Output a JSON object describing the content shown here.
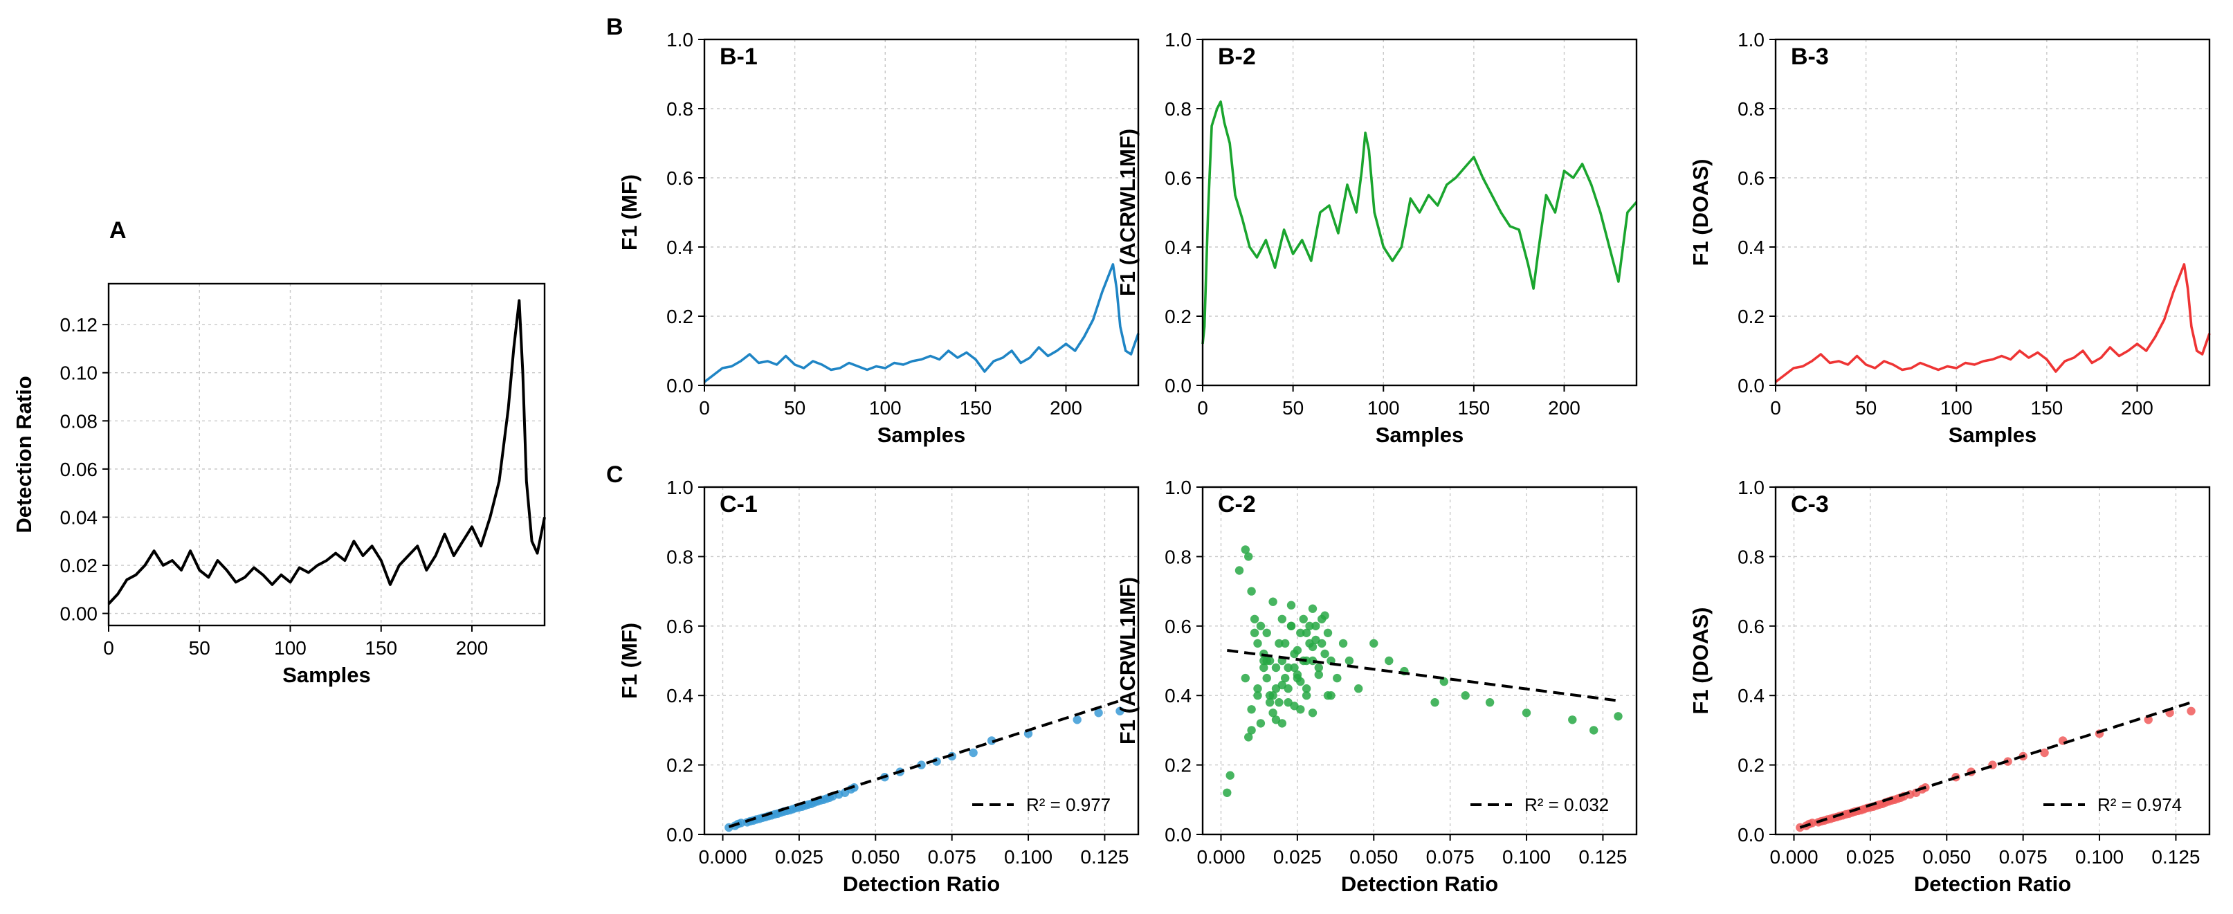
{
  "figure": {
    "panel_letters": {
      "A": "A",
      "B": "B",
      "C": "C"
    }
  },
  "chart_data": [
    {
      "id": "A",
      "type": "line",
      "title": "",
      "xlabel": "Samples",
      "ylabel": "Detection Ratio",
      "xlim": [
        0,
        240
      ],
      "ylim": [
        -0.005,
        0.137
      ],
      "xticks": [
        0,
        50,
        100,
        150,
        200
      ],
      "xtick_labels": [
        "0",
        "50",
        "100",
        "150",
        "200"
      ],
      "yticks": [
        0.0,
        0.02,
        0.04,
        0.06,
        0.08,
        0.1,
        0.12
      ],
      "ytick_labels": [
        "0.00",
        "0.02",
        "0.04",
        "0.06",
        "0.08",
        "0.10",
        "0.12"
      ],
      "grid": true,
      "color": "#000000",
      "series": [
        {
          "name": "Detection Ratio",
          "x": [
            0,
            5,
            10,
            15,
            20,
            25,
            30,
            35,
            40,
            45,
            50,
            55,
            60,
            65,
            70,
            75,
            80,
            85,
            90,
            95,
            100,
            105,
            110,
            115,
            120,
            125,
            130,
            135,
            140,
            145,
            150,
            155,
            160,
            165,
            170,
            175,
            180,
            185,
            190,
            195,
            200,
            205,
            210,
            215,
            220,
            223,
            226,
            228,
            230,
            233,
            236,
            240
          ],
          "y": [
            0.004,
            0.008,
            0.014,
            0.016,
            0.02,
            0.026,
            0.02,
            0.022,
            0.018,
            0.026,
            0.018,
            0.015,
            0.022,
            0.018,
            0.013,
            0.015,
            0.019,
            0.016,
            0.012,
            0.016,
            0.013,
            0.019,
            0.017,
            0.02,
            0.022,
            0.025,
            0.022,
            0.03,
            0.024,
            0.028,
            0.022,
            0.012,
            0.02,
            0.024,
            0.028,
            0.018,
            0.024,
            0.033,
            0.024,
            0.03,
            0.036,
            0.028,
            0.04,
            0.055,
            0.085,
            0.11,
            0.13,
            0.1,
            0.055,
            0.03,
            0.025,
            0.04
          ]
        }
      ]
    },
    {
      "id": "B-1",
      "type": "line",
      "title": "B-1",
      "xlabel": "Samples",
      "ylabel": "F1 (MF)",
      "xlim": [
        0,
        240
      ],
      "ylim": [
        0,
        1.0
      ],
      "xticks": [
        0,
        50,
        100,
        150,
        200
      ],
      "xtick_labels": [
        "0",
        "50",
        "100",
        "150",
        "200"
      ],
      "yticks": [
        0.0,
        0.2,
        0.4,
        0.6,
        0.8,
        1.0
      ],
      "ytick_labels": [
        "0.0",
        "0.2",
        "0.4",
        "0.6",
        "0.8",
        "1.0"
      ],
      "grid": true,
      "color": "#1f85c5",
      "series": [
        {
          "name": "MF",
          "x": [
            0,
            5,
            10,
            15,
            20,
            25,
            30,
            35,
            40,
            45,
            50,
            55,
            60,
            65,
            70,
            75,
            80,
            85,
            90,
            95,
            100,
            105,
            110,
            115,
            120,
            125,
            130,
            135,
            140,
            145,
            150,
            155,
            160,
            165,
            170,
            175,
            180,
            185,
            190,
            195,
            200,
            205,
            210,
            215,
            220,
            223,
            226,
            228,
            230,
            233,
            236,
            240
          ],
          "y": [
            0.01,
            0.03,
            0.05,
            0.055,
            0.07,
            0.09,
            0.065,
            0.07,
            0.06,
            0.085,
            0.06,
            0.05,
            0.07,
            0.06,
            0.045,
            0.05,
            0.065,
            0.055,
            0.045,
            0.055,
            0.05,
            0.065,
            0.06,
            0.07,
            0.075,
            0.085,
            0.075,
            0.1,
            0.08,
            0.095,
            0.075,
            0.04,
            0.07,
            0.08,
            0.1,
            0.065,
            0.08,
            0.11,
            0.085,
            0.1,
            0.12,
            0.1,
            0.14,
            0.19,
            0.27,
            0.31,
            0.35,
            0.28,
            0.17,
            0.1,
            0.09,
            0.15
          ]
        }
      ]
    },
    {
      "id": "B-2",
      "type": "line",
      "title": "B-2",
      "xlabel": "Samples",
      "ylabel": "F1 (ACRWL1MF)",
      "xlim": [
        0,
        240
      ],
      "ylim": [
        0,
        1.0
      ],
      "xticks": [
        0,
        50,
        100,
        150,
        200
      ],
      "xtick_labels": [
        "0",
        "50",
        "100",
        "150",
        "200"
      ],
      "yticks": [
        0.0,
        0.2,
        0.4,
        0.6,
        0.8,
        1.0
      ],
      "ytick_labels": [
        "0.0",
        "0.2",
        "0.4",
        "0.6",
        "0.8",
        "1.0"
      ],
      "grid": true,
      "color": "#1aa52e",
      "series": [
        {
          "name": "ACRWL1MF",
          "x": [
            0,
            1,
            3,
            5,
            8,
            10,
            12,
            15,
            18,
            22,
            26,
            30,
            35,
            40,
            45,
            50,
            55,
            60,
            65,
            70,
            75,
            80,
            85,
            88,
            90,
            92,
            95,
            100,
            105,
            110,
            115,
            120,
            125,
            130,
            135,
            140,
            145,
            150,
            155,
            160,
            165,
            170,
            175,
            180,
            183,
            186,
            190,
            195,
            200,
            205,
            210,
            215,
            220,
            225,
            230,
            235,
            240
          ],
          "y": [
            0.12,
            0.17,
            0.5,
            0.75,
            0.8,
            0.82,
            0.76,
            0.7,
            0.55,
            0.48,
            0.4,
            0.37,
            0.42,
            0.34,
            0.45,
            0.38,
            0.42,
            0.36,
            0.5,
            0.52,
            0.44,
            0.58,
            0.5,
            0.62,
            0.73,
            0.68,
            0.5,
            0.4,
            0.36,
            0.4,
            0.54,
            0.5,
            0.55,
            0.52,
            0.58,
            0.6,
            0.63,
            0.66,
            0.6,
            0.55,
            0.5,
            0.46,
            0.45,
            0.35,
            0.28,
            0.4,
            0.55,
            0.5,
            0.62,
            0.6,
            0.64,
            0.58,
            0.5,
            0.4,
            0.3,
            0.5,
            0.53
          ]
        }
      ]
    },
    {
      "id": "B-3",
      "type": "line",
      "title": "B-3",
      "xlabel": "Samples",
      "ylabel": "F1 (DOAS)",
      "xlim": [
        0,
        240
      ],
      "ylim": [
        0,
        1.0
      ],
      "xticks": [
        0,
        50,
        100,
        150,
        200
      ],
      "xtick_labels": [
        "0",
        "50",
        "100",
        "150",
        "200"
      ],
      "yticks": [
        0.0,
        0.2,
        0.4,
        0.6,
        0.8,
        1.0
      ],
      "ytick_labels": [
        "0.0",
        "0.2",
        "0.4",
        "0.6",
        "0.8",
        "1.0"
      ],
      "grid": true,
      "color": "#ee3434",
      "series": [
        {
          "name": "DOAS",
          "x": [
            0,
            5,
            10,
            15,
            20,
            25,
            30,
            35,
            40,
            45,
            50,
            55,
            60,
            65,
            70,
            75,
            80,
            85,
            90,
            95,
            100,
            105,
            110,
            115,
            120,
            125,
            130,
            135,
            140,
            145,
            150,
            155,
            160,
            165,
            170,
            175,
            180,
            185,
            190,
            195,
            200,
            205,
            210,
            215,
            220,
            223,
            226,
            228,
            230,
            233,
            236,
            240
          ],
          "y": [
            0.01,
            0.03,
            0.05,
            0.055,
            0.07,
            0.09,
            0.065,
            0.07,
            0.06,
            0.085,
            0.06,
            0.05,
            0.07,
            0.06,
            0.045,
            0.05,
            0.065,
            0.055,
            0.045,
            0.055,
            0.05,
            0.065,
            0.06,
            0.07,
            0.075,
            0.085,
            0.075,
            0.1,
            0.08,
            0.095,
            0.075,
            0.04,
            0.07,
            0.08,
            0.1,
            0.065,
            0.08,
            0.11,
            0.085,
            0.1,
            0.12,
            0.1,
            0.14,
            0.19,
            0.27,
            0.31,
            0.35,
            0.28,
            0.17,
            0.1,
            0.09,
            0.15
          ]
        }
      ]
    },
    {
      "id": "C-1",
      "type": "scatter",
      "title": "C-1",
      "xlabel": "Detection Ratio",
      "ylabel": "F1 (MF)",
      "xlim": [
        -0.006,
        0.136
      ],
      "ylim": [
        0,
        1.0
      ],
      "xticks": [
        0.0,
        0.025,
        0.05,
        0.075,
        0.1,
        0.125
      ],
      "xtick_labels": [
        "0.000",
        "0.025",
        "0.050",
        "0.075",
        "0.100",
        "0.125"
      ],
      "yticks": [
        0.0,
        0.2,
        0.4,
        0.6,
        0.8,
        1.0
      ],
      "ytick_labels": [
        "0.0",
        "0.2",
        "0.4",
        "0.6",
        "0.8",
        "1.0"
      ],
      "grid": true,
      "color": "#3a9ad6",
      "legend_label": "R² = 0.977",
      "legend_position": "bottom-right",
      "fit_line": {
        "x": [
          0.002,
          0.13
        ],
        "y": [
          0.022,
          0.385
        ]
      },
      "x": [
        0.002,
        0.004,
        0.005,
        0.006,
        0.008,
        0.009,
        0.01,
        0.011,
        0.012,
        0.013,
        0.014,
        0.015,
        0.016,
        0.017,
        0.018,
        0.019,
        0.02,
        0.021,
        0.022,
        0.023,
        0.024,
        0.025,
        0.026,
        0.027,
        0.028,
        0.029,
        0.03,
        0.031,
        0.032,
        0.033,
        0.034,
        0.035,
        0.036,
        0.038,
        0.04,
        0.042,
        0.043,
        0.053,
        0.058,
        0.065,
        0.07,
        0.075,
        0.082,
        0.088,
        0.1,
        0.116,
        0.123,
        0.13
      ],
      "y": [
        0.02,
        0.025,
        0.03,
        0.033,
        0.035,
        0.038,
        0.04,
        0.043,
        0.045,
        0.048,
        0.05,
        0.053,
        0.055,
        0.058,
        0.06,
        0.063,
        0.066,
        0.068,
        0.07,
        0.073,
        0.076,
        0.078,
        0.08,
        0.083,
        0.086,
        0.088,
        0.092,
        0.095,
        0.098,
        0.1,
        0.103,
        0.106,
        0.11,
        0.115,
        0.12,
        0.13,
        0.135,
        0.165,
        0.18,
        0.2,
        0.21,
        0.225,
        0.235,
        0.27,
        0.29,
        0.33,
        0.35,
        0.355
      ]
    },
    {
      "id": "C-2",
      "type": "scatter",
      "title": "C-2",
      "xlabel": "Detection Ratio",
      "ylabel": "F1 (ACRWL1MF)",
      "xlim": [
        -0.006,
        0.136
      ],
      "ylim": [
        0,
        1.0
      ],
      "xticks": [
        0.0,
        0.025,
        0.05,
        0.075,
        0.1,
        0.125
      ],
      "xtick_labels": [
        "0.000",
        "0.025",
        "0.050",
        "0.075",
        "0.100",
        "0.125"
      ],
      "yticks": [
        0.0,
        0.2,
        0.4,
        0.6,
        0.8,
        1.0
      ],
      "ytick_labels": [
        "0.0",
        "0.2",
        "0.4",
        "0.6",
        "0.8",
        "1.0"
      ],
      "grid": true,
      "color": "#27a844",
      "legend_label": "R² = 0.032",
      "legend_position": "bottom-right",
      "fit_line": {
        "x": [
          0.002,
          0.13
        ],
        "y": [
          0.53,
          0.385
        ]
      },
      "x": [
        0.002,
        0.003,
        0.006,
        0.008,
        0.009,
        0.01,
        0.011,
        0.012,
        0.013,
        0.014,
        0.015,
        0.016,
        0.017,
        0.018,
        0.019,
        0.02,
        0.021,
        0.022,
        0.023,
        0.024,
        0.025,
        0.026,
        0.027,
        0.028,
        0.029,
        0.03,
        0.031,
        0.032,
        0.033,
        0.034,
        0.035,
        0.036,
        0.038,
        0.04,
        0.042,
        0.045,
        0.05,
        0.055,
        0.06,
        0.07,
        0.073,
        0.08,
        0.088,
        0.1,
        0.115,
        0.122,
        0.13,
        0.008,
        0.012,
        0.016,
        0.02,
        0.024,
        0.028,
        0.032,
        0.036,
        0.01,
        0.014,
        0.018,
        0.022,
        0.026,
        0.03,
        0.034,
        0.011,
        0.015,
        0.019,
        0.023,
        0.027,
        0.031,
        0.009,
        0.013,
        0.017,
        0.021,
        0.025,
        0.029,
        0.033,
        0.012,
        0.016,
        0.02,
        0.024,
        0.028,
        0.014,
        0.018,
        0.022,
        0.026,
        0.03,
        0.015,
        0.02,
        0.025,
        0.03,
        0.035,
        0.01,
        0.017,
        0.023,
        0.028
      ],
      "y": [
        0.12,
        0.17,
        0.76,
        0.82,
        0.8,
        0.7,
        0.62,
        0.55,
        0.6,
        0.5,
        0.45,
        0.4,
        0.35,
        0.42,
        0.38,
        0.5,
        0.55,
        0.48,
        0.6,
        0.52,
        0.45,
        0.58,
        0.62,
        0.5,
        0.55,
        0.65,
        0.6,
        0.48,
        0.55,
        0.63,
        0.58,
        0.5,
        0.45,
        0.55,
        0.5,
        0.42,
        0.55,
        0.5,
        0.47,
        0.38,
        0.44,
        0.4,
        0.38,
        0.35,
        0.33,
        0.3,
        0.34,
        0.45,
        0.4,
        0.5,
        0.43,
        0.37,
        0.42,
        0.46,
        0.4,
        0.36,
        0.48,
        0.33,
        0.38,
        0.44,
        0.35,
        0.52,
        0.58,
        0.5,
        0.55,
        0.6,
        0.5,
        0.56,
        0.28,
        0.32,
        0.4,
        0.45,
        0.53,
        0.6,
        0.62,
        0.42,
        0.38,
        0.32,
        0.48,
        0.4,
        0.52,
        0.48,
        0.42,
        0.36,
        0.54,
        0.58,
        0.62,
        0.46,
        0.5,
        0.4,
        0.3,
        0.67,
        0.66,
        0.58
      ]
    },
    {
      "id": "C-3",
      "type": "scatter",
      "title": "C-3",
      "xlabel": "Detection Ratio",
      "ylabel": "F1 (DOAS)",
      "xlim": [
        -0.006,
        0.136
      ],
      "ylim": [
        0,
        1.0
      ],
      "xticks": [
        0.0,
        0.025,
        0.05,
        0.075,
        0.1,
        0.125
      ],
      "xtick_labels": [
        "0.000",
        "0.025",
        "0.050",
        "0.075",
        "0.100",
        "0.125"
      ],
      "yticks": [
        0.0,
        0.2,
        0.4,
        0.6,
        0.8,
        1.0
      ],
      "ytick_labels": [
        "0.0",
        "0.2",
        "0.4",
        "0.6",
        "0.8",
        "1.0"
      ],
      "grid": true,
      "color": "#f05a5a",
      "legend_label": "R² = 0.974",
      "legend_position": "bottom-right",
      "fit_line": {
        "x": [
          0.002,
          0.13
        ],
        "y": [
          0.02,
          0.38
        ]
      },
      "x": [
        0.002,
        0.004,
        0.005,
        0.006,
        0.008,
        0.009,
        0.01,
        0.011,
        0.012,
        0.013,
        0.014,
        0.015,
        0.016,
        0.017,
        0.018,
        0.019,
        0.02,
        0.021,
        0.022,
        0.023,
        0.024,
        0.025,
        0.026,
        0.027,
        0.028,
        0.029,
        0.03,
        0.031,
        0.032,
        0.033,
        0.034,
        0.035,
        0.036,
        0.038,
        0.04,
        0.042,
        0.043,
        0.053,
        0.058,
        0.065,
        0.07,
        0.075,
        0.082,
        0.088,
        0.1,
        0.116,
        0.123,
        0.13
      ],
      "y": [
        0.02,
        0.025,
        0.03,
        0.033,
        0.035,
        0.038,
        0.04,
        0.043,
        0.045,
        0.048,
        0.05,
        0.053,
        0.055,
        0.058,
        0.06,
        0.063,
        0.066,
        0.068,
        0.07,
        0.073,
        0.076,
        0.078,
        0.08,
        0.083,
        0.086,
        0.088,
        0.092,
        0.095,
        0.098,
        0.1,
        0.103,
        0.106,
        0.11,
        0.115,
        0.12,
        0.13,
        0.135,
        0.165,
        0.18,
        0.2,
        0.21,
        0.225,
        0.235,
        0.27,
        0.29,
        0.33,
        0.35,
        0.355
      ]
    }
  ]
}
